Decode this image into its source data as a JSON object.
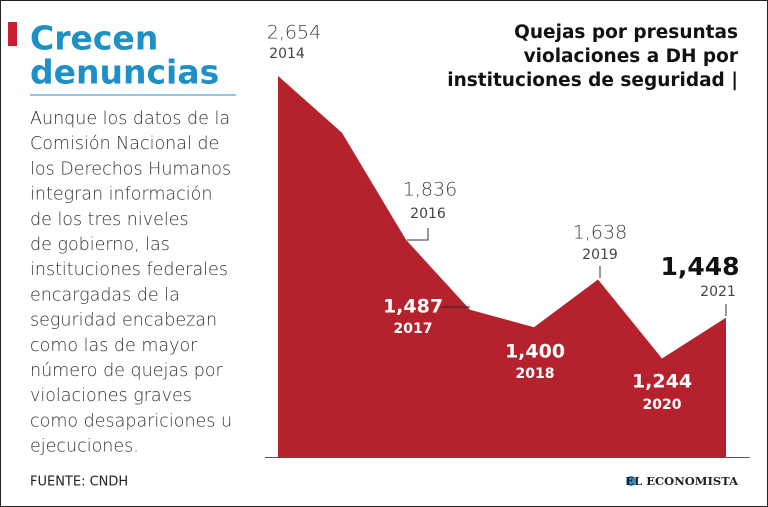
{
  "chart_data": {
    "type": "area",
    "title": [
      "Quejas por presuntas",
      "violaciones a DH por",
      "instituciones de seguridad |"
    ],
    "heading": [
      "Crecen",
      "denuncias"
    ],
    "description": [
      "Aunque los datos de la",
      "Comisión Nacional de",
      "los Derechos Humanos",
      "integran información",
      "de los tres niveles",
      "de gobierno, las",
      "instituciones federales",
      "encargadas de la",
      "seguridad encabezan",
      "como las de mayor",
      "número de quejas por",
      "violaciones graves",
      "como desapariciones u",
      "ejecuciones."
    ],
    "source": "FUENTE: CNDH",
    "logo": "EL ECONOMISTA",
    "categories": [
      "2014",
      null,
      "2016",
      "2017",
      "2018",
      "2019",
      "2020",
      "2021"
    ],
    "values": [
      2654,
      2370,
      1836,
      1487,
      1400,
      1638,
      1244,
      1448
    ],
    "value_labels": [
      "2,654",
      null,
      "1,836",
      "1,487",
      "1,400",
      "1,638",
      "1,244",
      "1,448"
    ],
    "color": "#b5222d",
    "ylim": [
      750,
      2750
    ]
  }
}
